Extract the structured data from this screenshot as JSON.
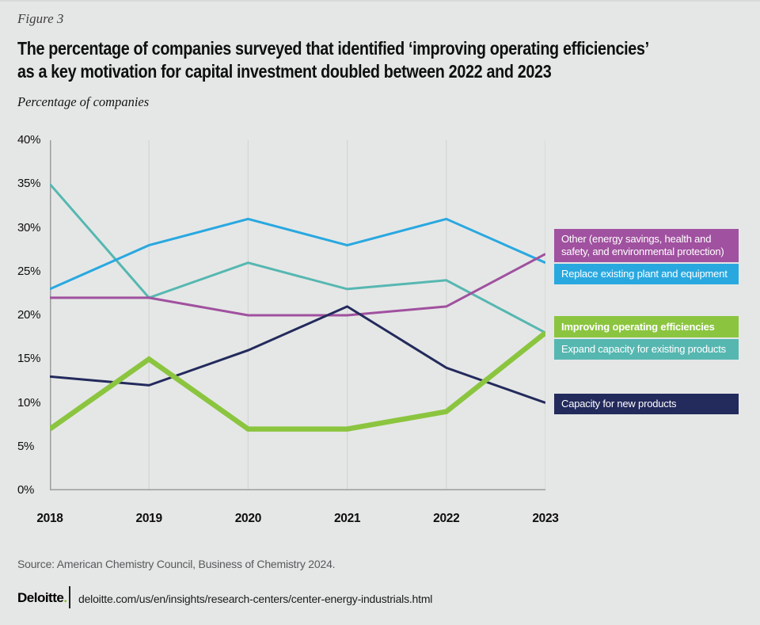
{
  "figure_label": "Figure 3",
  "title": {
    "line1": "The percentage of companies surveyed that identified ‘improving operating efficiencies’",
    "line2": "as a key motivation for capital investment doubled between 2022 and 2023"
  },
  "subtitle": "Percentage of companies",
  "chart_data": {
    "type": "line",
    "categories": [
      "2018",
      "2019",
      "2020",
      "2021",
      "2022",
      "2023"
    ],
    "y_ticks": [
      "40%",
      "35%",
      "30%",
      "25%",
      "20%",
      "15%",
      "10%",
      "5%",
      "0%"
    ],
    "ylim": [
      0,
      40
    ],
    "ylabel": "Percentage of companies",
    "grid": "vertical year gridlines only",
    "legend_position": "right",
    "series": [
      {
        "name": "Expand capacity for existing products",
        "color": "#56b7b1",
        "stroke_width": 3,
        "values": [
          35,
          22,
          26,
          23,
          24,
          18
        ]
      },
      {
        "name": "Replace existing plant and equipment",
        "color": "#29a8e0",
        "stroke_width": 3,
        "values": [
          23,
          28,
          31,
          28,
          31,
          26
        ]
      },
      {
        "name": "Other (energy savings, health and safety, and environmental protection)",
        "color": "#a0519f",
        "stroke_width": 3,
        "values": [
          22,
          22,
          20,
          20,
          21,
          27
        ]
      },
      {
        "name": "Capacity for new products",
        "color": "#232a5c",
        "stroke_width": 3,
        "values": [
          13,
          12,
          16,
          21,
          14,
          10
        ]
      },
      {
        "name": "Improving operating efficiencies",
        "color": "#8bc53f",
        "stroke_width": 6.5,
        "values": [
          7,
          15,
          7,
          7,
          9,
          18
        ]
      }
    ]
  },
  "source": "Source: American Chemistry Council, Business of Chemistry 2024.",
  "footer": {
    "brand": "Deloitte",
    "brand_dot": ".",
    "url": "deloitte.com/us/en/insights/research-centers/center-energy-industrials.html"
  },
  "colors": {
    "background": "#e5e7e6",
    "gridline": "#d2d5d3",
    "axis": "#9b9e9c",
    "legend_text": "#ffffff",
    "brand_accent_green": "#86bc25"
  }
}
